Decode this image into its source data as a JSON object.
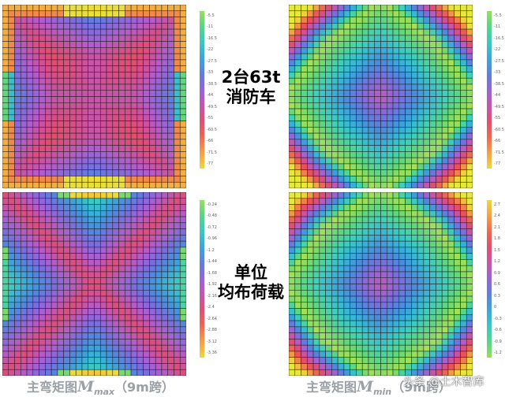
{
  "panels": [
    {
      "id": "mmax-fire",
      "pattern": "x-ring"
    },
    {
      "id": "mmin-fire",
      "pattern": "diamond"
    },
    {
      "id": "mmax-uniform",
      "pattern": "x-band"
    },
    {
      "id": "mmin-uniform",
      "pattern": "diamond-uniform"
    }
  ],
  "legends": [
    {
      "id": "legend-top-left",
      "ticks": [
        "-5.5",
        "-11",
        "-16.5",
        "-22",
        "-27.5",
        "-33",
        "-38.5",
        "-44",
        "-49.5",
        "-55",
        "-60.5",
        "-66",
        "-71.5",
        "-77"
      ]
    },
    {
      "id": "legend-top-right",
      "ticks": [
        "-5.5",
        "-11",
        "-16.5",
        "-22",
        "-27.5",
        "-33",
        "-38.5",
        "-44",
        "-49.5",
        "-55",
        "-60.5",
        "-66",
        "-71.5",
        "-77"
      ]
    },
    {
      "id": "legend-bottom-left",
      "ticks": [
        "-0.24",
        "-0.48",
        "-0.72",
        "-0.96",
        "-1.2",
        "-1.44",
        "-1.68",
        "-1.92",
        "-2.16",
        "-2.4",
        "-2.64",
        "-2.88",
        "-3.12",
        "-3.36"
      ]
    },
    {
      "id": "legend-bottom-right",
      "ticks": [
        "2.7",
        "2.4",
        "2.1",
        "1.8",
        "1.5",
        "1.2",
        "0.9",
        "0.6",
        "0.3",
        "0",
        "-0.3",
        "-0.6",
        "-0.9",
        "-1.2"
      ]
    }
  ],
  "labels": {
    "top": "2台63t\n消防车",
    "bottom": "单位\n均布荷载"
  },
  "captions": {
    "left": {
      "prefix": "主弯矩图",
      "symbol": "M",
      "subscript": "max",
      "suffix": "（9m跨）"
    },
    "right": {
      "prefix": "主弯矩图",
      "symbol": "M",
      "subscript": "min",
      "suffix": "（9m跨）"
    }
  },
  "watermark": "头条 @土木智库",
  "colors": {
    "scale": [
      "#e6e93c",
      "#f4b840",
      "#f07a4f",
      "#e8505a",
      "#d74e8a",
      "#b25dca",
      "#7d6cdf",
      "#4c8bdc",
      "#37b3d8",
      "#3fd0b8",
      "#62d67a",
      "#a7e056"
    ]
  }
}
